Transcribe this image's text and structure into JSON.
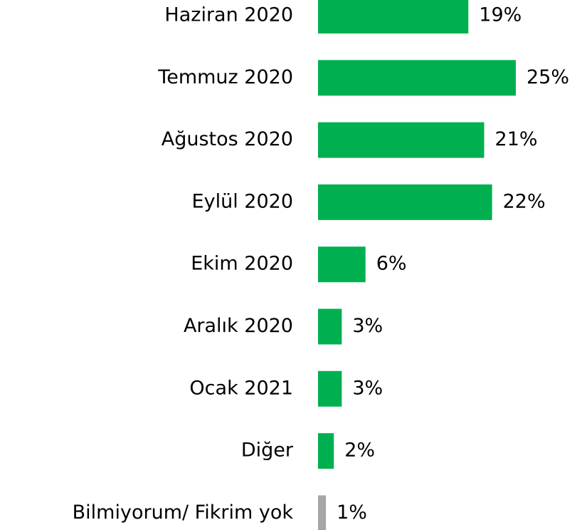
{
  "chart_data": {
    "type": "hbar",
    "categories": [
      "Haziran 2020",
      "Temmuz 2020",
      "Ağustos 2020",
      "Eylül 2020",
      "Ekim 2020",
      "Aralık 2020",
      "Ocak 2021",
      "Diğer",
      "Bilmiyorum/ Fikrim yok"
    ],
    "values": [
      19,
      25,
      21,
      22,
      6,
      3,
      3,
      2,
      1
    ],
    "value_labels": [
      "19%",
      "25%",
      "21%",
      "22%",
      "6%",
      "3%",
      "3%",
      "2%",
      "1%"
    ],
    "colors": [
      "#00b050",
      "#00b050",
      "#00b050",
      "#00b050",
      "#00b050",
      "#00b050",
      "#00b050",
      "#00b050",
      "#a6a6a6"
    ]
  }
}
